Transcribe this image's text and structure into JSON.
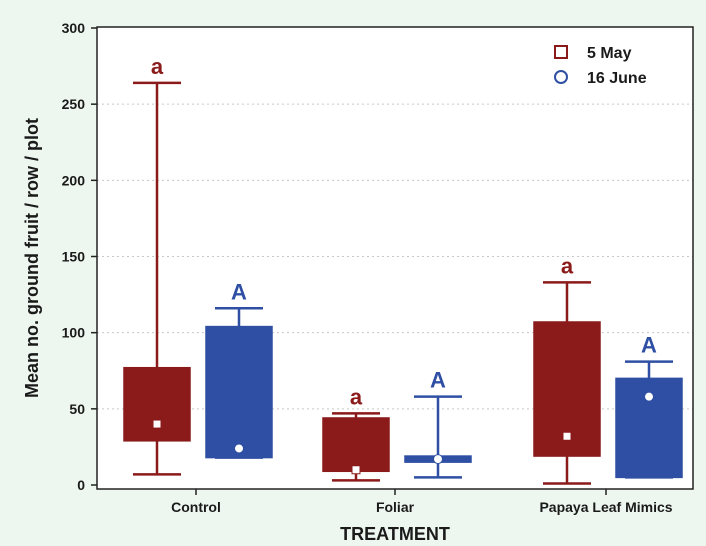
{
  "chart_data": {
    "type": "box",
    "xlabel": "TREATMENT",
    "ylabel": "Mean no. ground fruit / row / plot",
    "ylim": [
      0,
      300
    ],
    "yticks": [
      0,
      50,
      100,
      150,
      200,
      250,
      300
    ],
    "grid": "horizontal dashed",
    "legend_position": "top-right",
    "categories": [
      "Control",
      "Foliar",
      "Papaya Leaf Mimics"
    ],
    "series": [
      {
        "name": "5 May",
        "color": "#8b1a1a",
        "marker": "square",
        "boxes": [
          {
            "whisker_low": 7,
            "q1": 29,
            "q3": 77,
            "whisker_high": 264,
            "mean": 40,
            "letter": "a"
          },
          {
            "whisker_low": 3,
            "q1": 9,
            "q3": 44,
            "whisker_high": 47,
            "mean": 10,
            "letter": "a"
          },
          {
            "whisker_low": 1,
            "q1": 19,
            "q3": 107,
            "whisker_high": 133,
            "mean": 32,
            "letter": "a"
          }
        ]
      },
      {
        "name": "16 June",
        "color": "#2e4fa3",
        "marker": "circle",
        "boxes": [
          {
            "whisker_low": 18,
            "q1": 18,
            "q3": 104,
            "whisker_high": 116,
            "mean": 24,
            "letter": "A"
          },
          {
            "whisker_low": 5,
            "q1": 15,
            "q3": 19,
            "whisker_high": 58,
            "mean": 17,
            "letter": "A"
          },
          {
            "whisker_low": 5,
            "q1": 5,
            "q3": 70,
            "whisker_high": 81,
            "mean": 58,
            "letter": "A"
          }
        ]
      }
    ]
  }
}
